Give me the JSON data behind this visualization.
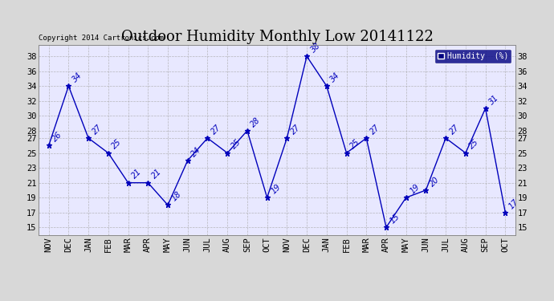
{
  "title": "Outdoor Humidity Monthly Low 20141122",
  "copyright": "Copyright 2014 Cartronics.com",
  "legend_label": "Humidity  (%)",
  "months": [
    "NOV",
    "DEC",
    "JAN",
    "FEB",
    "MAR",
    "APR",
    "MAY",
    "JUN",
    "JUL",
    "AUG",
    "SEP",
    "OCT",
    "NOV",
    "DEC",
    "JAN",
    "FEB",
    "MAR",
    "APR",
    "MAY",
    "JUN",
    "JUL",
    "AUG",
    "SEP",
    "OCT"
  ],
  "values": [
    26,
    34,
    27,
    25,
    21,
    21,
    18,
    24,
    27,
    25,
    28,
    19,
    27,
    38,
    34,
    25,
    27,
    15,
    19,
    20,
    27,
    25,
    31,
    17
  ],
  "ylim": [
    14,
    39.5
  ],
  "yticks": [
    15,
    17,
    19,
    21,
    23,
    25,
    27,
    28,
    30,
    32,
    34,
    36,
    38
  ],
  "line_color": "#0000bb",
  "marker_color": "#0000bb",
  "background_color": "#d8d8d8",
  "plot_bg_color": "#e8e8ff",
  "title_fontsize": 13,
  "tick_fontsize": 7.5,
  "legend_bg": "#000080",
  "legend_fg": "#ffffff"
}
